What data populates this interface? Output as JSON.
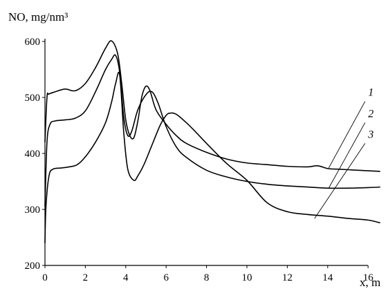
{
  "chart_data": {
    "type": "line",
    "ylabel": "NO, mg/nm³",
    "xlabel": "x, m",
    "xlim": [
      0,
      16.9
    ],
    "ylim": [
      200,
      600
    ],
    "xticks": [
      0,
      2,
      4,
      6,
      8,
      10,
      12,
      14,
      16
    ],
    "yticks": [
      200,
      300,
      400,
      500,
      600
    ],
    "grid": false,
    "series": [
      {
        "name": "1",
        "x": [
          0,
          0.1,
          0.2,
          0.5,
          1.0,
          1.5,
          2.0,
          2.5,
          3.0,
          3.3,
          3.6,
          3.8,
          4.0,
          4.2,
          4.4,
          4.6,
          4.8,
          5.0,
          5.2,
          5.5,
          6.0,
          6.5,
          7.0,
          8.0,
          9.0,
          10.0,
          11.0,
          12.0,
          13.0,
          13.5,
          14.0,
          14.5,
          15.0,
          16.0,
          16.6
        ],
        "y": [
          420,
          500,
          506,
          510,
          515,
          512,
          525,
          553,
          588,
          601,
          578,
          525,
          460,
          432,
          428,
          458,
          502,
          520,
          512,
          478,
          452,
          432,
          418,
          402,
          390,
          383,
          380,
          377,
          376,
          378,
          373,
          372,
          371,
          369,
          368
        ]
      },
      {
        "name": "2",
        "x": [
          0,
          0.1,
          0.25,
          0.5,
          1.0,
          1.5,
          2.0,
          2.5,
          3.0,
          3.3,
          3.5,
          3.7,
          3.9,
          4.1,
          4.3,
          4.6,
          5.0,
          5.3,
          5.6,
          6.0,
          6.5,
          7.0,
          8.0,
          9.0,
          10.0,
          11.0,
          12.0,
          13.0,
          14.0,
          15.0,
          16.0,
          16.6
        ],
        "y": [
          305,
          420,
          452,
          458,
          460,
          463,
          476,
          510,
          550,
          568,
          575,
          545,
          465,
          432,
          440,
          478,
          505,
          510,
          490,
          448,
          412,
          393,
          370,
          358,
          350,
          345,
          342,
          340,
          338,
          338,
          339,
          340
        ]
      },
      {
        "name": "3",
        "x": [
          0,
          0.05,
          0.2,
          0.4,
          0.8,
          1.2,
          1.6,
          2.0,
          2.5,
          3.0,
          3.3,
          3.5,
          3.7,
          3.9,
          4.1,
          4.4,
          4.6,
          4.9,
          5.3,
          5.7,
          6.0,
          6.2,
          6.5,
          7.0,
          7.5,
          8.0,
          9.0,
          10.0,
          11.0,
          12.0,
          13.0,
          14.0,
          15.0,
          16.0,
          16.6
        ],
        "y": [
          240,
          305,
          360,
          372,
          374,
          376,
          380,
          394,
          420,
          455,
          492,
          525,
          540,
          438,
          372,
          352,
          360,
          380,
          415,
          450,
          468,
          472,
          470,
          455,
          437,
          418,
          382,
          352,
          312,
          296,
          291,
          288,
          284,
          281,
          276
        ]
      }
    ],
    "series_labels": [
      "1",
      "2",
      "3"
    ]
  }
}
